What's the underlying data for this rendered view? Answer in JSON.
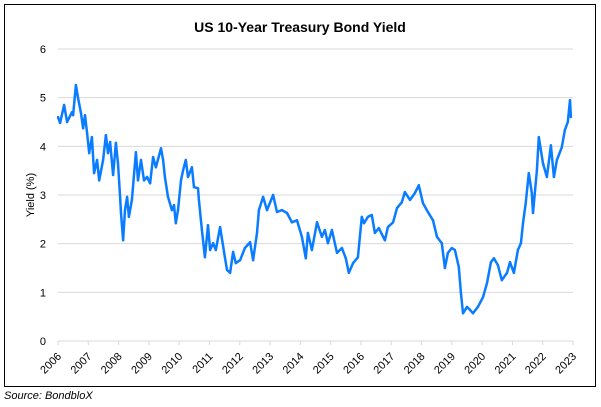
{
  "chart_data": {
    "type": "line",
    "title": "US 10-Year Treasury Bond Yield",
    "xlabel": "",
    "ylabel": "Yield (%)",
    "xlim": [
      2006,
      2023
    ],
    "ylim": [
      0,
      6
    ],
    "yticks": [
      "0",
      "1",
      "2",
      "3",
      "4",
      "5",
      "6"
    ],
    "xticks": [
      "2006",
      "2007",
      "2008",
      "2009",
      "2010",
      "2011",
      "2012",
      "2013",
      "2014",
      "2015",
      "2016",
      "2017",
      "2018",
      "2019",
      "2020",
      "2021",
      "2022",
      "2023"
    ],
    "grid": "horizontal",
    "legend": "none",
    "line_color": "#0a7cff",
    "series": [
      {
        "x": [
          2006.0,
          2006.07,
          2006.2,
          2006.3,
          2006.46,
          2006.5,
          2006.59,
          2006.66,
          2006.76,
          2006.83,
          2006.89,
          2006.96,
          2007.03,
          2007.12,
          2007.19,
          2007.29,
          2007.36,
          2007.49,
          2007.58,
          2007.65,
          2007.72,
          2007.82,
          2007.91,
          2007.98,
          2008.05,
          2008.08,
          2008.15,
          2008.21,
          2008.28,
          2008.34,
          2008.44,
          2008.57,
          2008.64,
          2008.74,
          2008.84,
          2008.94,
          2009.04,
          2009.14,
          2009.23,
          2009.4,
          2009.47,
          2009.53,
          2009.63,
          2009.76,
          2009.83,
          2009.89,
          2009.96,
          2010.06,
          2010.13,
          2010.22,
          2010.29,
          2010.42,
          2010.49,
          2010.62,
          2010.65,
          2010.75,
          2010.85,
          2010.95,
          2011.02,
          2011.12,
          2011.21,
          2011.35,
          2011.51,
          2011.58,
          2011.68,
          2011.78,
          2011.87,
          2012.01,
          2012.17,
          2012.34,
          2012.44,
          2012.57,
          2012.63,
          2012.77,
          2012.9,
          2013.1,
          2013.23,
          2013.39,
          2013.56,
          2013.72,
          2013.89,
          2014.05,
          2014.18,
          2014.25,
          2014.38,
          2014.55,
          2014.71,
          2014.81,
          2014.91,
          2015.04,
          2015.21,
          2015.37,
          2015.5,
          2015.6,
          2015.74,
          2015.9,
          2016.03,
          2016.1,
          2016.23,
          2016.36,
          2016.46,
          2016.59,
          2016.79,
          2016.89,
          2017.06,
          2017.19,
          2017.35,
          2017.45,
          2017.62,
          2017.78,
          2017.91,
          2018.05,
          2018.21,
          2018.38,
          2018.51,
          2018.67,
          2018.77,
          2018.87,
          2019.0,
          2019.1,
          2019.23,
          2019.3,
          2019.37,
          2019.5,
          2019.6,
          2019.7,
          2019.86,
          2020.03,
          2020.16,
          2020.29,
          2020.39,
          2020.52,
          2020.65,
          2020.82,
          2020.92,
          2021.05,
          2021.18,
          2021.28,
          2021.35,
          2021.44,
          2021.54,
          2021.64,
          2021.68,
          2021.81,
          2021.87,
          2022.01,
          2022.14,
          2022.27,
          2022.37,
          2022.47,
          2022.63,
          2022.73,
          2022.83,
          2022.9,
          2022.93
        ],
        "y": [
          4.6,
          4.48,
          4.85,
          4.5,
          4.7,
          4.64,
          5.26,
          5.0,
          4.68,
          4.37,
          4.64,
          4.27,
          3.86,
          4.19,
          3.45,
          3.72,
          3.3,
          3.72,
          4.23,
          3.86,
          4.09,
          3.41,
          4.07,
          3.65,
          2.96,
          2.63,
          2.07,
          2.69,
          2.96,
          2.55,
          2.9,
          3.88,
          3.3,
          3.72,
          3.3,
          3.37,
          3.24,
          3.78,
          3.57,
          3.96,
          3.72,
          3.37,
          2.96,
          2.69,
          2.79,
          2.42,
          2.69,
          3.3,
          3.51,
          3.72,
          3.37,
          3.57,
          3.16,
          3.14,
          2.9,
          2.28,
          1.72,
          2.38,
          1.87,
          2.01,
          1.87,
          2.34,
          1.72,
          1.46,
          1.4,
          1.83,
          1.6,
          1.66,
          1.91,
          2.03,
          1.66,
          2.22,
          2.69,
          2.96,
          2.69,
          3.0,
          2.65,
          2.69,
          2.63,
          2.44,
          2.48,
          2.14,
          1.7,
          2.22,
          1.87,
          2.44,
          2.14,
          2.28,
          2.01,
          2.28,
          1.81,
          1.91,
          1.7,
          1.4,
          1.6,
          1.72,
          2.55,
          2.42,
          2.55,
          2.59,
          2.22,
          2.32,
          2.07,
          2.34,
          2.44,
          2.73,
          2.85,
          3.06,
          2.9,
          3.04,
          3.2,
          2.83,
          2.65,
          2.48,
          2.14,
          2.01,
          1.5,
          1.81,
          1.91,
          1.87,
          1.52,
          0.99,
          0.57,
          0.7,
          0.64,
          0.57,
          0.7,
          0.9,
          1.19,
          1.62,
          1.7,
          1.56,
          1.25,
          1.4,
          1.62,
          1.4,
          1.87,
          2.01,
          2.42,
          2.83,
          3.45,
          3.04,
          2.63,
          3.51,
          4.19,
          3.65,
          3.37,
          4.02,
          3.37,
          3.72,
          3.98,
          4.33,
          4.5,
          4.95,
          4.6
        ]
      }
    ]
  },
  "source": "Source: BondbloX"
}
